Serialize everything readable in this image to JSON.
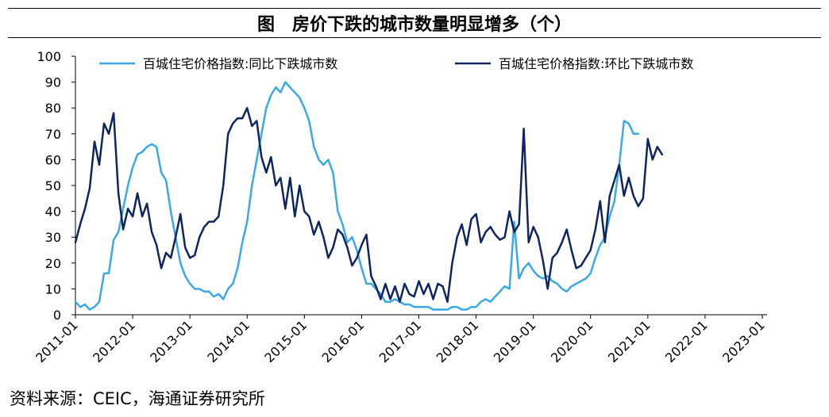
{
  "header": {
    "title": "图　房价下跌的城市数量明显增多（个）"
  },
  "footer": {
    "source": "资料来源：CEIC，海通证券研究所"
  },
  "chart_data": {
    "type": "line",
    "title": "图　房价下跌的城市数量明显增多（个）",
    "xlabel": "",
    "ylabel": "",
    "ylim": [
      0,
      100
    ],
    "yticks": [
      0,
      10,
      20,
      30,
      40,
      50,
      60,
      70,
      80,
      90,
      100
    ],
    "xticks": [
      "2011-01",
      "2012-01",
      "2013-01",
      "2014-01",
      "2015-01",
      "2016-01",
      "2017-01",
      "2018-01",
      "2019-01",
      "2020-01",
      "2021-01",
      "2022-01",
      "2023-01"
    ],
    "legend_position": "top",
    "series": [
      {
        "name": "百城住宅价格指数:同比下跌城市数",
        "color": "#3aa9e6",
        "start": "2011-01",
        "frequency": "monthly",
        "values": [
          5,
          3,
          4,
          2,
          3,
          5,
          16,
          16,
          29,
          32,
          41,
          50,
          57,
          62,
          63,
          65,
          66,
          65,
          55,
          52,
          40,
          30,
          20,
          15,
          12,
          10,
          10,
          9,
          9,
          7,
          8,
          6,
          10,
          12,
          18,
          28,
          36,
          50,
          60,
          70,
          80,
          85,
          88,
          86,
          90,
          88,
          86,
          84,
          80,
          75,
          65,
          60,
          58,
          60,
          55,
          40,
          35,
          28,
          30,
          25,
          18,
          12,
          12,
          10,
          8,
          5,
          5,
          6,
          5,
          4,
          4,
          3,
          3,
          3,
          3,
          2,
          2,
          2,
          2,
          3,
          3,
          2,
          2,
          3,
          3,
          5,
          6,
          5,
          7,
          9,
          11,
          10,
          36,
          14,
          18,
          20,
          17,
          15,
          14,
          15,
          13,
          12,
          10,
          9,
          11,
          12,
          13,
          14,
          16,
          22,
          27,
          30,
          38,
          44,
          58,
          75,
          74,
          70,
          70
        ]
      },
      {
        "name": "百城住宅价格指数:环比下跌城市数",
        "color": "#0e2560",
        "start": "2011-01",
        "frequency": "monthly",
        "values": [
          28,
          35,
          41,
          49,
          67,
          58,
          74,
          70,
          78,
          47,
          33,
          41,
          38,
          47,
          38,
          43,
          32,
          27,
          18,
          24,
          22,
          30,
          39,
          26,
          22,
          23,
          30,
          34,
          36,
          36,
          38,
          50,
          70,
          74,
          76,
          76,
          80,
          73,
          75,
          61,
          55,
          61,
          50,
          53,
          41,
          53,
          38,
          50,
          40,
          38,
          31,
          36,
          30,
          22,
          26,
          33,
          31,
          26,
          19,
          22,
          27,
          31,
          15,
          11,
          6,
          12,
          6,
          11,
          5,
          12,
          8,
          7,
          13,
          8,
          12,
          6,
          12,
          11,
          5,
          20,
          30,
          35,
          27,
          37,
          39,
          28,
          32,
          34,
          31,
          29,
          30,
          40,
          32,
          35,
          72,
          28,
          34,
          30,
          21,
          10,
          22,
          24,
          28,
          33,
          25,
          18,
          19,
          22,
          25,
          33,
          44,
          28,
          46,
          52,
          58,
          46,
          53,
          46,
          42,
          45,
          68,
          60,
          65,
          62
        ]
      }
    ]
  }
}
